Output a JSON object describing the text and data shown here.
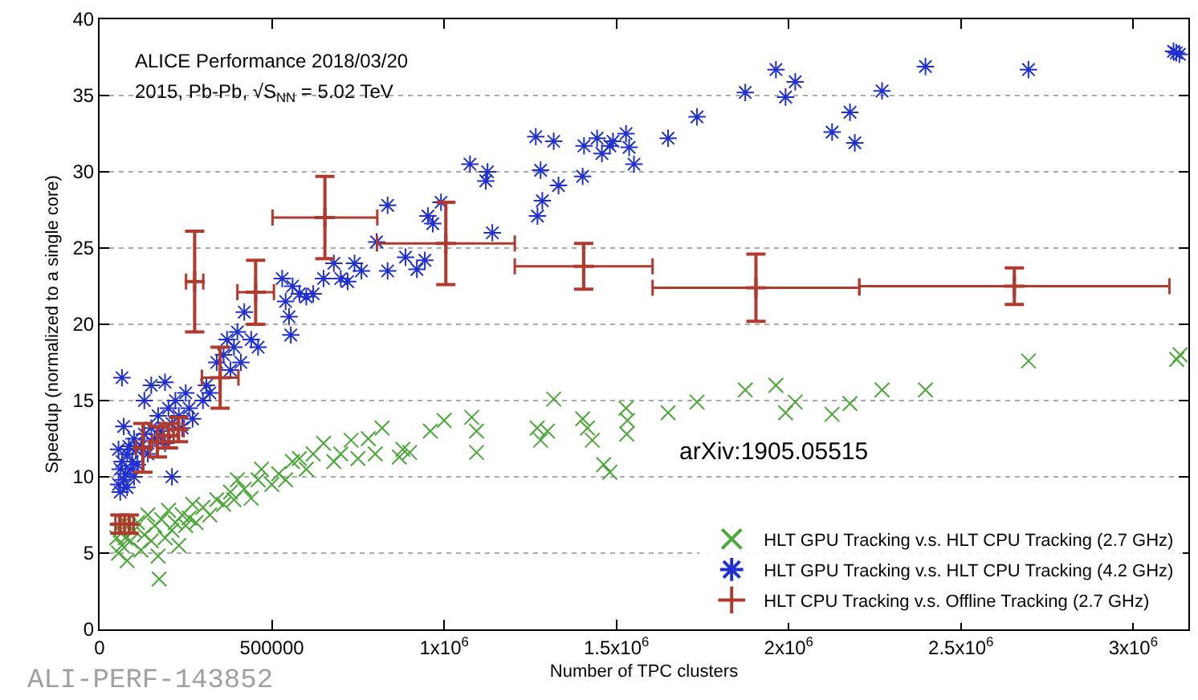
{
  "chart_data": {
    "type": "scatter",
    "xlabel": "Number of TPC clusters",
    "ylabel": "Speedup (normalized to a single core)",
    "xlim": [
      0,
      3160000
    ],
    "ylim": [
      0,
      40
    ],
    "xticks": [
      0,
      500000,
      {
        "value": 1000000,
        "label": "1x10$^{6}$"
      },
      {
        "value": 1500000,
        "label": "1.5x10$^{6}$"
      },
      {
        "value": 2000000,
        "label": "2x10$^{6}$"
      },
      {
        "value": 2500000,
        "label": "2.5x10$^{6}$"
      },
      {
        "value": 3000000,
        "label": "3x10$^{6}$"
      }
    ],
    "yticks": [
      0,
      5,
      10,
      15,
      20,
      25,
      30,
      35,
      40
    ],
    "grid": "y",
    "legend": "bottom right",
    "annotations": [
      "ALICE Performance 2018/03/20",
      "2015, Pb-Pb, √S$_{NN}$ = 5.02 TeV",
      "arXiv:1905.05515",
      "ALI-PERF-143852"
    ],
    "series": [
      {
        "name": "HLT GPU Tracking v.s. HLT CPU Tracking (2.7 GHz)",
        "color": "#4ca63a",
        "marker": "cross",
        "x": [
          50000,
          55000,
          60000,
          65000,
          70000,
          75000,
          80000,
          85000,
          90000,
          100000,
          110000,
          120000,
          130000,
          140000,
          150000,
          160000,
          170000,
          173000,
          180000,
          190000,
          200000,
          210000,
          220000,
          230000,
          240000,
          250000,
          260000,
          270000,
          280000,
          300000,
          320000,
          340000,
          360000,
          380000,
          390000,
          400000,
          420000,
          440000,
          460000,
          470000,
          500000,
          520000,
          540000,
          560000,
          580000,
          600000,
          620000,
          650000,
          680000,
          700000,
          730000,
          750000,
          780000,
          800000,
          820000,
          870000,
          880000,
          900000,
          960000,
          1000000,
          1080000,
          1094000,
          1094000,
          1270000,
          1280000,
          1300000,
          1318000,
          1402000,
          1416000,
          1430000,
          1463000,
          1481000,
          1528000,
          1530000,
          1532000,
          1650000,
          1734000,
          1874000,
          1963000,
          1991000,
          2019000,
          2126000,
          2178000,
          2271000,
          2397000,
          2696000,
          3126000,
          3136000
        ],
        "values": [
          6,
          5,
          6.5,
          5.5,
          7,
          6,
          4.5,
          6.8,
          5.8,
          6.5,
          7,
          5.2,
          6.2,
          7.5,
          5.8,
          6.8,
          4.8,
          3.3,
          7.2,
          6,
          7.8,
          6.5,
          7,
          5.5,
          7.5,
          6.8,
          7.3,
          8.2,
          7,
          8,
          7.5,
          8.5,
          8.2,
          9,
          8.5,
          9.8,
          9.2,
          8.6,
          9.8,
          10.5,
          9.5,
          10.2,
          9.8,
          11,
          11.2,
          10.5,
          11.5,
          12.2,
          11,
          11.5,
          12.4,
          11.2,
          12.5,
          11.5,
          13.2,
          11.3,
          11.8,
          11.6,
          13,
          13.7,
          13.9,
          13,
          11.6,
          13.2,
          12.4,
          13,
          15.1,
          13.8,
          13.2,
          12.4,
          10.8,
          10.3,
          14.5,
          12.8,
          13.7,
          14.2,
          14.9,
          15.7,
          16,
          14.2,
          14.9,
          14.1,
          14.8,
          15.7,
          15.7,
          17.6,
          17.7,
          18
        ]
      },
      {
        "name": "HLT GPU Tracking v.s. HLT CPU Tracking (4.2 GHz)",
        "color": "#1f2fd0",
        "marker": "cross",
        "x": [
          55000,
          60000,
          65000,
          70000,
          75000,
          80000,
          85000,
          90000,
          95000,
          100000,
          105000,
          110000,
          120000,
          130000,
          140000,
          150000,
          160000,
          170000,
          180000,
          190000,
          200000,
          210000,
          220000,
          230000,
          240000,
          250000,
          260000,
          270000,
          55000,
          60000,
          65000,
          70000,
          80000,
          100000,
          130000,
          150000,
          190000,
          210000,
          300000,
          310000,
          320000,
          340000,
          360000,
          370000,
          380000,
          390000,
          400000,
          410000,
          420000,
          440000,
          460000,
          530000,
          540000,
          550000,
          555000,
          560000,
          580000,
          600000,
          620000,
          650000,
          680000,
          700000,
          720000,
          740000,
          760000,
          804000,
          836000,
          836000,
          888000,
          921000,
          944000,
          953000,
          967000,
          991000,
          1075000,
          1121000,
          1126000,
          1140000,
          1266000,
          1271000,
          1280000,
          1285000,
          1318000,
          1332000,
          1402000,
          1406000,
          1444000,
          1458000,
          1481000,
          1490000,
          1528000,
          1537000,
          1551000,
          1650000,
          1734000,
          1874000,
          1963000,
          1991000,
          2019000,
          2126000,
          2178000,
          2192000,
          2271000,
          2397000,
          2696000,
          3117000,
          3125000,
          3134000
        ],
        "values": [
          9.5,
          10.5,
          11,
          9.8,
          10.2,
          11.5,
          12,
          10.5,
          11,
          12.5,
          11.8,
          10.8,
          12,
          12.8,
          11.5,
          13.2,
          12.5,
          14,
          13,
          12.2,
          14.5,
          13.5,
          15,
          14,
          13.2,
          15.5,
          14.5,
          13.8,
          11.8,
          9,
          16.5,
          13.3,
          9.3,
          10,
          15,
          16,
          16.2,
          10,
          15,
          16,
          15.5,
          17.5,
          18,
          19,
          17,
          18.5,
          19.5,
          17.5,
          20.8,
          19,
          18.5,
          23,
          21.5,
          20.5,
          19.3,
          22.5,
          22,
          21.8,
          22,
          23,
          24,
          23,
          22.8,
          24,
          23.5,
          25.4,
          27.8,
          23.5,
          24.4,
          23.6,
          24.2,
          27.1,
          26.6,
          28,
          30.5,
          29.4,
          30,
          26,
          32.3,
          27.1,
          30.1,
          28.1,
          32,
          29.1,
          29.7,
          31.7,
          32.2,
          31.2,
          31.7,
          32,
          32.5,
          31.6,
          30.5,
          32.2,
          33.6,
          35.2,
          36.7,
          34.9,
          35.9,
          32.6,
          33.9,
          31.9,
          35.3,
          36.9,
          36.7,
          37.9,
          37.8,
          37.7
        ]
      },
      {
        "name": "HLT CPU Tracking v.s. Offline Tracking (2.7 GHz)",
        "color": "#b03a2e",
        "marker": "cross",
        "x": [
          59000,
          86000,
          126000,
          168000,
          200000,
          229000,
          276000,
          350000,
          453000,
          654000,
          1005000,
          1405000,
          1905000,
          2655000
        ],
        "values": [
          6.9,
          6.9,
          11.9,
          12.3,
          12.7,
          13.1,
          22.8,
          16.5,
          22.1,
          27,
          25.3,
          23.8,
          22.4,
          22.5
        ],
        "errors": [
          0.6,
          0.6,
          1.6,
          1,
          0.8,
          0.8,
          3.3,
          2,
          2.1,
          2.7,
          2.7,
          1.5,
          2.2,
          1.2
        ],
        "xerrors": [
          13000,
          13000,
          20000,
          15000,
          15000,
          15000,
          25000,
          53000,
          53000,
          152000,
          200000,
          200000,
          300000,
          450000
        ]
      }
    ]
  }
}
